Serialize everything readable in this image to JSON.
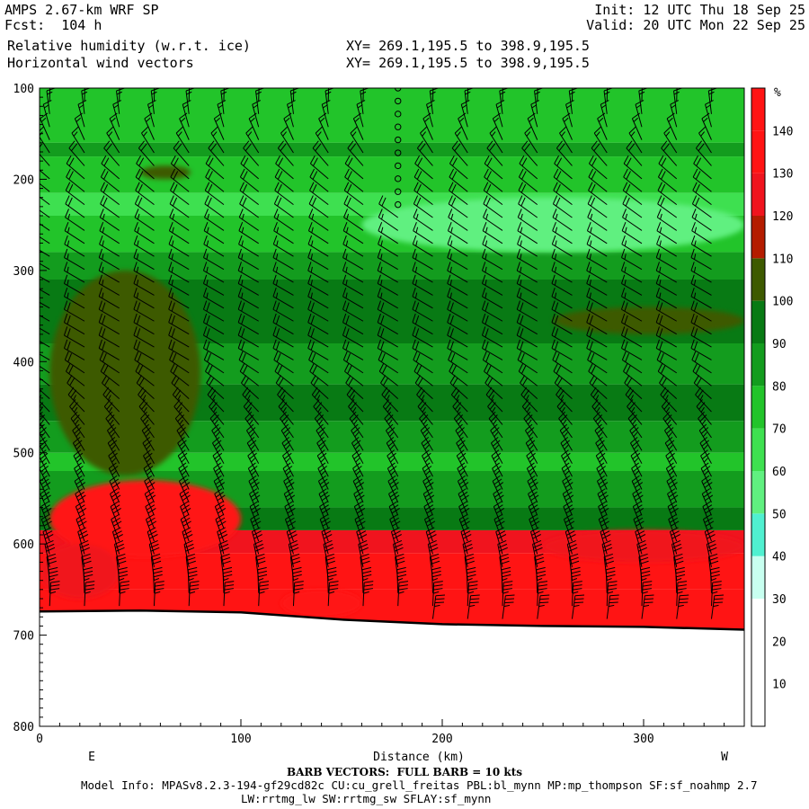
{
  "header": {
    "model": "AMPS 2.67-km WRF SP",
    "forecast": "Fcst:  104 h",
    "variable": "Relative humidity (w.r.t. ice)",
    "vectors": "Horizontal wind vectors",
    "xy_line1": "XY= 269.1,195.5 to 398.9,195.5",
    "xy_line2": "XY= 269.1,195.5 to 398.9,195.5",
    "init": "Init: 12 UTC Thu 18 Sep 25",
    "valid": "Valid: 20 UTC Mon 22 Sep 25"
  },
  "footer": {
    "barb_note": "BARB VECTORS:  FULL BARB = 10 kts",
    "model_info": "Model Info: MPASv8.2.3-194-gf29cd82c CU:cu_grell_freitas PBL:bl_mynn MP:mp_thompson SF:sf_noahmp 2.7",
    "model_info2": "LW:rrtmg_lw SW:rrtmg_sw SFLAY:sf_mynn"
  },
  "chart_data": {
    "type": "heatmap",
    "title": "Relative humidity (w.r.t. ice)",
    "xlabel": "Distance (km)",
    "ylabel": "",
    "xlim": [
      0,
      350
    ],
    "ylim": [
      800,
      100
    ],
    "x_ticks": [
      0,
      100,
      200,
      300
    ],
    "y_ticks": [
      100,
      200,
      300,
      400,
      500,
      600,
      700,
      800
    ],
    "x_end_labels": {
      "left": "E",
      "right": "W"
    },
    "colorbar": {
      "unit": "%",
      "levels": [
        10,
        20,
        30,
        40,
        50,
        60,
        70,
        80,
        90,
        100,
        110,
        120,
        130,
        140
      ],
      "colors": [
        "#ffffff",
        "#ffffff",
        "#ffffff",
        "#c8fff0",
        "#50f0d0",
        "#60f080",
        "#3ee050",
        "#22c42a",
        "#139c1e",
        "#087a14",
        "#3d5a00",
        "#b41c00",
        "#f0141e",
        "#ff1414",
        "#ff1414"
      ]
    },
    "terrain_surface": [
      [
        0,
        674
      ],
      [
        50,
        673
      ],
      [
        100,
        675
      ],
      [
        150,
        683
      ],
      [
        200,
        688
      ],
      [
        250,
        690
      ],
      [
        300,
        691
      ],
      [
        350,
        694
      ]
    ],
    "rh_layers": [
      {
        "bottom": 160,
        "rh": 70
      },
      {
        "bottom": 175,
        "rh": 80
      },
      {
        "bottom": 215,
        "rh": 70
      },
      {
        "bottom": 240,
        "rh": 60
      },
      {
        "bottom": 280,
        "rh": 70
      },
      {
        "bottom": 310,
        "rh": 80
      },
      {
        "bottom": 345,
        "rh": 90
      },
      {
        "bottom": 380,
        "rh": 90
      },
      {
        "bottom": 425,
        "rh": 80
      },
      {
        "bottom": 465,
        "rh": 90
      },
      {
        "bottom": 500,
        "rh": 80
      },
      {
        "bottom": 520,
        "rh": 70
      },
      {
        "bottom": 560,
        "rh": 80
      },
      {
        "bottom": 585,
        "rh": 90
      },
      {
        "bottom": 610,
        "rh": 120
      },
      {
        "bottom": 650,
        "rh": 130
      },
      {
        "bottom": 700,
        "rh": 140
      }
    ],
    "rh_features": [
      {
        "x": [
          5,
          80
        ],
        "p": [
          300,
          525
        ],
        "rh": 100
      },
      {
        "x": [
          160,
          350
        ],
        "p": [
          220,
          280
        ],
        "rh": 50
      },
      {
        "x": [
          255,
          350
        ],
        "p": [
          340,
          370
        ],
        "rh": 100
      },
      {
        "x": [
          50,
          75
        ],
        "p": [
          185,
          200
        ],
        "rh": 100
      },
      {
        "x": [
          5,
          100
        ],
        "p": [
          530,
          615
        ],
        "rh": 130
      },
      {
        "x": [
          120,
          160
        ],
        "p": [
          650,
          680
        ],
        "rh": 140
      },
      {
        "x": [
          0,
          40
        ],
        "p": [
          600,
          660
        ],
        "rh": 120
      },
      {
        "x": [
          250,
          350
        ],
        "p": [
          585,
          620
        ],
        "rh": 120
      }
    ],
    "wind_profile": [
      {
        "p": 100,
        "speed_kts": 10,
        "dir_deg": 10
      },
      {
        "p": 200,
        "speed_kts": 20,
        "dir_deg": 310
      },
      {
        "p": 300,
        "speed_kts": 15,
        "dir_deg": 300
      },
      {
        "p": 400,
        "speed_kts": 20,
        "dir_deg": 300
      },
      {
        "p": 500,
        "speed_kts": 25,
        "dir_deg": 330
      },
      {
        "p": 600,
        "speed_kts": 30,
        "dir_deg": 340
      },
      {
        "p": 690,
        "speed_kts": 35,
        "dir_deg": 10
      }
    ],
    "calm_column_x": 173
  }
}
